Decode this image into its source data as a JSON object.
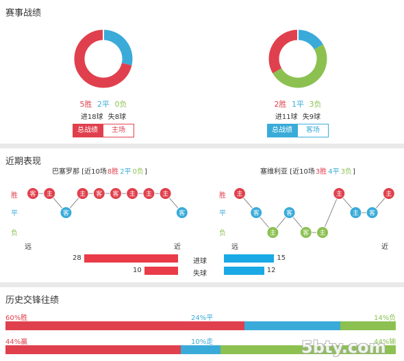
{
  "colors": {
    "win": "#e0404d",
    "draw": "#3aabd9",
    "loss": "#8cc152",
    "home_red": "#e0404d",
    "away_blue": "#3aabd9",
    "goal_bar": "#ea3b48",
    "goal_bar_blue": "#1aa9e5"
  },
  "sections": {
    "match_record": {
      "title": "赛事战绩"
    },
    "recent_form": {
      "title": "近期表现"
    },
    "head_to_head": {
      "title": "历史交锋往绩"
    }
  },
  "team_left": {
    "record": {
      "win": 5,
      "draw": 2,
      "loss": 0,
      "win_text": "5胜",
      "draw_text": "2平",
      "loss_text": "0负"
    },
    "goals": {
      "scored_text": "进18球",
      "conceded_text": "失8球"
    },
    "buttons": {
      "overall": "总战绩",
      "venue": "主场"
    }
  },
  "team_right": {
    "record": {
      "win": 2,
      "draw": 1,
      "loss": 3,
      "win_text": "2胜",
      "draw_text": "1平",
      "loss_text": "3负"
    },
    "goals": {
      "scored_text": "进11球",
      "conceded_text": "失9球"
    },
    "buttons": {
      "overall": "总战绩",
      "venue": "客场"
    }
  },
  "recent": {
    "left_header": {
      "name": "巴塞罗那",
      "prefix": "[近10场",
      "w": "8胜",
      "d": "2平",
      "l": "0负",
      "suffix": "]"
    },
    "right_header": {
      "name": "塞维利亚",
      "prefix": "[近10场",
      "w": "3胜",
      "d": "4平",
      "l": "3负",
      "suffix": "]"
    },
    "row_labels": {
      "win": "胜",
      "draw": "平",
      "loss": "负"
    },
    "axis_labels": {
      "far": "远",
      "near": "近"
    },
    "left_matches": [
      {
        "result": "win",
        "venue": "客"
      },
      {
        "result": "win",
        "venue": "主"
      },
      {
        "result": "draw",
        "venue": "客"
      },
      {
        "result": "win",
        "venue": "主"
      },
      {
        "result": "win",
        "venue": "客"
      },
      {
        "result": "win",
        "venue": "客"
      },
      {
        "result": "win",
        "venue": "主"
      },
      {
        "result": "win",
        "venue": "主"
      },
      {
        "result": "win",
        "venue": "主"
      },
      {
        "result": "draw",
        "venue": "客"
      }
    ],
    "right_matches": [
      {
        "result": "win",
        "venue": "主"
      },
      {
        "result": "draw",
        "venue": "客"
      },
      {
        "result": "loss",
        "venue": "主"
      },
      {
        "result": "draw",
        "venue": "客"
      },
      {
        "result": "loss",
        "venue": "客"
      },
      {
        "result": "loss",
        "venue": "主"
      },
      {
        "result": "win",
        "venue": "主"
      },
      {
        "result": "draw",
        "venue": "主"
      },
      {
        "result": "draw",
        "venue": "客"
      },
      {
        "result": "win",
        "venue": "主"
      }
    ],
    "goals_scored": {
      "label": "进球",
      "left": 28,
      "right": 15
    },
    "goals_conceded": {
      "label": "失球",
      "left": 10,
      "right": 12
    }
  },
  "h2h": {
    "row1": {
      "win_pct": 60,
      "draw_pct": 24,
      "loss_pct": 14,
      "win_text": "60%胜",
      "draw_text": "24%平",
      "loss_text": "14%负"
    },
    "row2": {
      "win_pct": 44,
      "draw_pct": 10,
      "loss_pct": 44,
      "win_text": "44%赢",
      "draw_text": "10%走",
      "loss_text": "44%输"
    }
  },
  "watermark": "5bty.com"
}
